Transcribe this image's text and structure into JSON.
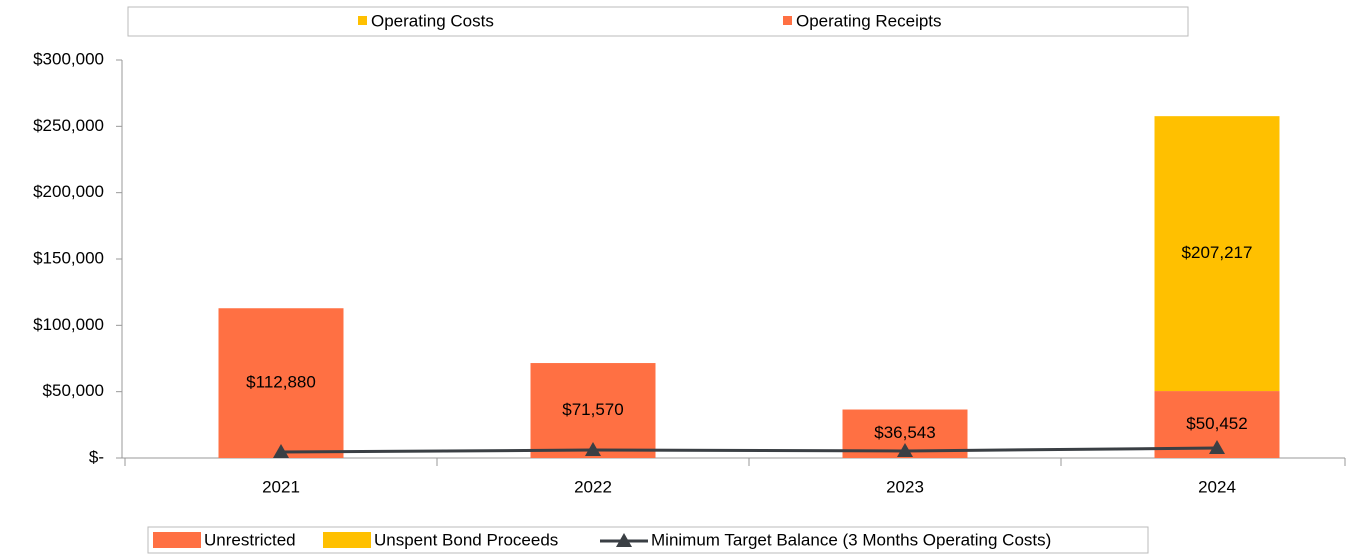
{
  "chart_data": {
    "type": "bar",
    "top_legend": [
      {
        "name": "Operating Costs",
        "color": "#FFC000"
      },
      {
        "name": "Operating Receipts",
        "color": "#FF7043"
      }
    ],
    "categories": [
      "2021",
      "2022",
      "2023",
      "2024"
    ],
    "series": [
      {
        "name": "Unrestricted",
        "color": "#FF7043",
        "values": [
          112880,
          71570,
          36543,
          50452
        ],
        "value_labels": [
          "$112,880",
          "$71,570",
          "$36,543",
          "$50,452"
        ]
      },
      {
        "name": "Unspent Bond Proceeds",
        "color": "#FFC000",
        "values": [
          null,
          null,
          null,
          207217
        ],
        "value_labels": [
          null,
          null,
          null,
          "$207,217"
        ]
      },
      {
        "name": "Minimum Target Balance (3 Months Operating Costs)",
        "color": "#3a3f44",
        "type": "line",
        "values": [
          4500,
          6000,
          5300,
          7500
        ]
      }
    ],
    "stacked": true,
    "ylim": [
      0,
      300000
    ],
    "yticks": [
      {
        "value": 0,
        "label": "$-"
      },
      {
        "value": 50000,
        "label": "$50,000"
      },
      {
        "value": 100000,
        "label": "$100,000"
      },
      {
        "value": 150000,
        "label": "$150,000"
      },
      {
        "value": 200000,
        "label": "$200,000"
      },
      {
        "value": 250000,
        "label": "$250,000"
      },
      {
        "value": 300000,
        "label": "$300,000"
      }
    ],
    "grid": false
  }
}
